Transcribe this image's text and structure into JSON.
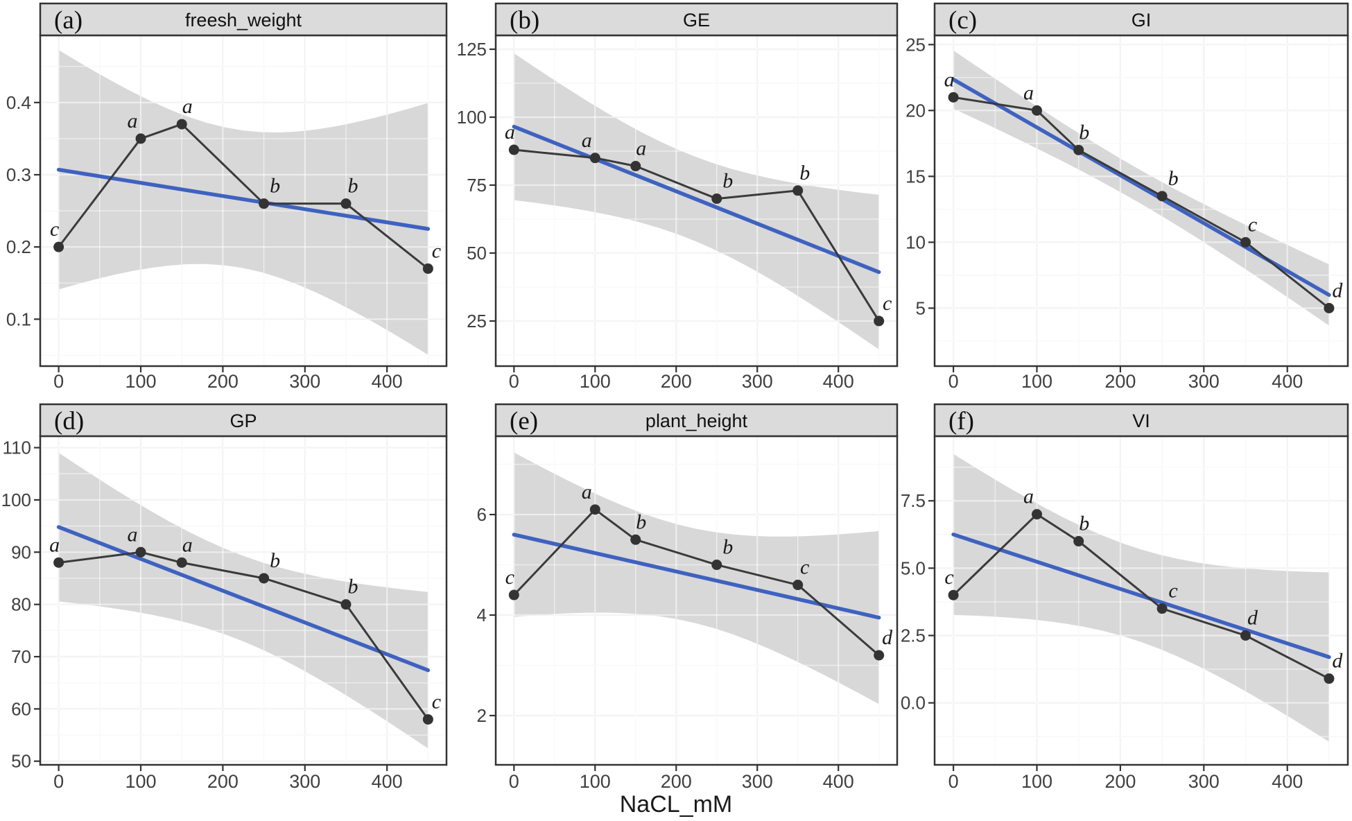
{
  "figure": {
    "xlabel": "NaCL_mM",
    "x_ticks": [
      0,
      100,
      200,
      300,
      400
    ],
    "x_minor_ticks": [
      50,
      150,
      250,
      350,
      450
    ],
    "x_domain": [
      -22.5,
      472.5
    ],
    "colors": {
      "trend_blue": "#3E62C0",
      "ribbon_gray": "#D8D8D8",
      "data_line": "#3A3A3A",
      "point_fill": "#333333",
      "panel_border": "#333333",
      "strip_bg": "#DBDBDB",
      "strip_text": "#111111",
      "grid_major": "#E7E7E7",
      "grid_minor": "#F1F1F1",
      "grid_overlay": "rgba(255,255,255,0.55)",
      "tick_mark": "#333333",
      "tick_label": "#3F3F3F",
      "letter_color": "#1A1A1A"
    }
  },
  "chart_data": [
    {
      "id": "a",
      "tag": "(a)",
      "title": "freesh_weight",
      "type": "line",
      "x": [
        0,
        100,
        150,
        250,
        350,
        450
      ],
      "y": [
        0.2,
        0.35,
        0.37,
        0.26,
        0.26,
        0.17
      ],
      "sig_letters": [
        "c",
        "a",
        "a",
        "b",
        "b",
        "c"
      ],
      "y_ticks": [
        0.1,
        0.2,
        0.3,
        0.4
      ],
      "y_tick_decimals": 1,
      "ylim": [
        0.035,
        0.493
      ],
      "trend": {
        "y_start": 0.307,
        "y_end": 0.225
      },
      "ci_halfwidth_scale": 0.233
    },
    {
      "id": "b",
      "tag": "(b)",
      "title": "GE",
      "type": "line",
      "x": [
        0,
        100,
        150,
        250,
        350,
        450
      ],
      "y": [
        88,
        85,
        82,
        70,
        73,
        25
      ],
      "sig_letters": [
        "a",
        "a",
        "a",
        "b",
        "b",
        "c"
      ],
      "y_ticks": [
        25,
        50,
        75,
        100,
        125
      ],
      "y_tick_decimals": 0,
      "ylim": [
        8.4,
        130.1
      ],
      "trend": {
        "y_start": 96.5,
        "y_end": 43.0
      },
      "ci_halfwidth_scale": 38
    },
    {
      "id": "c",
      "tag": "(c)",
      "title": "GI",
      "type": "line",
      "x": [
        0,
        100,
        150,
        250,
        350,
        450
      ],
      "y": [
        21,
        20,
        17,
        13.5,
        10,
        5
      ],
      "sig_letters": [
        "a",
        "a",
        "b",
        "b",
        "c",
        "d"
      ],
      "y_ticks": [
        5,
        10,
        15,
        20,
        25
      ],
      "y_tick_decimals": 0,
      "ylim": [
        0.6,
        25.7
      ],
      "trend": {
        "y_start": 22.35,
        "y_end": 6.0
      },
      "ci_halfwidth_scale": 3.1
    },
    {
      "id": "d",
      "tag": "(d)",
      "title": "GP",
      "type": "line",
      "x": [
        0,
        100,
        150,
        250,
        350,
        450
      ],
      "y": [
        88,
        90,
        88,
        85,
        80,
        58
      ],
      "sig_letters": [
        "a",
        "a",
        "a",
        "b",
        "b",
        "c"
      ],
      "y_ticks": [
        50,
        60,
        70,
        80,
        90,
        100,
        110
      ],
      "y_tick_decimals": 0,
      "ylim": [
        49.3,
        112.2
      ],
      "trend": {
        "y_start": 94.8,
        "y_end": 67.4
      },
      "ci_halfwidth_scale": 20
    },
    {
      "id": "e",
      "tag": "(e)",
      "title": "plant_height",
      "type": "line",
      "x": [
        0,
        100,
        150,
        250,
        350,
        450
      ],
      "y": [
        4.4,
        6.1,
        5.5,
        5.0,
        4.6,
        3.2
      ],
      "sig_letters": [
        "c",
        "a",
        "b",
        "b",
        "c",
        "d"
      ],
      "y_ticks": [
        2,
        4,
        6
      ],
      "y_tick_decimals": 0,
      "ylim": [
        1.02,
        7.56
      ],
      "trend": {
        "y_start": 5.6,
        "y_end": 3.95
      },
      "ci_halfwidth_scale": 2.3
    },
    {
      "id": "f",
      "tag": "(f)",
      "title": "VI",
      "type": "line",
      "x": [
        0,
        100,
        150,
        250,
        350,
        450
      ],
      "y": [
        4.0,
        7.0,
        6.0,
        3.5,
        2.5,
        0.9
      ],
      "sig_letters": [
        "c",
        "a",
        "b",
        "c",
        "d",
        "d"
      ],
      "y_ticks": [
        0.0,
        2.5,
        5.0,
        7.5
      ],
      "y_tick_decimals": 1,
      "ylim": [
        -2.3,
        9.9
      ],
      "trend": {
        "y_start": 6.25,
        "y_end": 1.7
      },
      "ci_halfwidth_scale": 4.2
    }
  ]
}
